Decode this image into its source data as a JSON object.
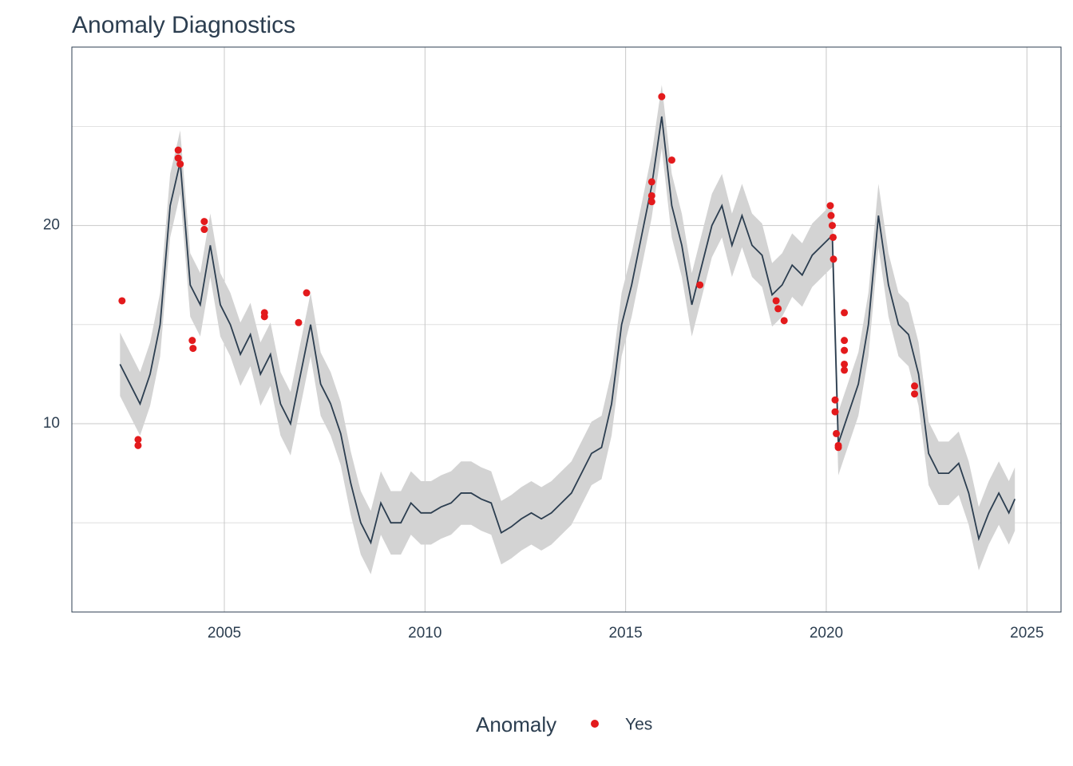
{
  "chart_data": {
    "type": "line",
    "title": "Anomaly Diagnostics",
    "x": [
      2002.4,
      2002.65,
      2002.9,
      2003.15,
      2003.4,
      2003.65,
      2003.9,
      2004.15,
      2004.4,
      2004.65,
      2004.9,
      2005.15,
      2005.4,
      2005.65,
      2005.9,
      2006.15,
      2006.4,
      2006.65,
      2006.9,
      2007.15,
      2007.4,
      2007.65,
      2007.9,
      2008.15,
      2008.4,
      2008.65,
      2008.9,
      2009.15,
      2009.4,
      2009.65,
      2009.9,
      2010.15,
      2010.4,
      2010.65,
      2010.9,
      2011.15,
      2011.4,
      2011.65,
      2011.9,
      2012.15,
      2012.4,
      2012.65,
      2012.9,
      2013.15,
      2013.4,
      2013.65,
      2013.9,
      2014.15,
      2014.4,
      2014.65,
      2014.9,
      2015.15,
      2015.4,
      2015.65,
      2015.9,
      2016.15,
      2016.4,
      2016.65,
      2016.9,
      2017.15,
      2017.4,
      2017.65,
      2017.9,
      2018.15,
      2018.4,
      2018.65,
      2018.9,
      2019.15,
      2019.4,
      2019.65,
      2019.9,
      2020.15,
      2020.3,
      2020.55,
      2020.8,
      2021.05,
      2021.3,
      2021.55,
      2021.8,
      2022.05,
      2022.3,
      2022.55,
      2022.8,
      2023.05,
      2023.3,
      2023.55,
      2023.8,
      2024.05,
      2024.3,
      2024.55,
      2024.7
    ],
    "values": [
      13,
      12,
      11,
      12.5,
      15,
      21,
      23.2,
      17,
      16,
      19,
      16,
      15,
      13.5,
      14.5,
      12.5,
      13.5,
      11,
      10,
      12.5,
      15,
      12,
      11,
      9.5,
      7,
      5,
      4,
      6,
      5,
      5,
      6,
      5.5,
      5.5,
      5.8,
      6,
      6.5,
      6.5,
      6.2,
      6,
      4.5,
      4.8,
      5.2,
      5.5,
      5.2,
      5.5,
      6,
      6.5,
      7.5,
      8.5,
      8.8,
      11,
      15,
      17,
      19.5,
      22,
      25.5,
      21,
      19,
      16,
      18,
      20,
      21,
      19,
      20.5,
      19,
      18.5,
      16.5,
      17,
      18,
      17.5,
      18.5,
      19,
      19.5,
      9,
      10.5,
      12,
      15,
      20.5,
      17,
      15,
      14.5,
      12.5,
      8.5,
      7.5,
      7.5,
      8,
      6.5,
      4.2,
      5.5,
      6.5,
      5.5,
      6.2
    ],
    "lower": [
      11.4,
      10.4,
      9.4,
      10.9,
      13.4,
      19.4,
      21.6,
      15.4,
      14.4,
      17.4,
      14.4,
      13.4,
      11.9,
      12.9,
      10.9,
      11.9,
      9.4,
      8.4,
      10.9,
      13.4,
      10.4,
      9.4,
      7.9,
      5.4,
      3.4,
      2.4,
      4.4,
      3.4,
      3.4,
      4.4,
      3.9,
      3.9,
      4.2,
      4.4,
      4.9,
      4.9,
      4.6,
      4.4,
      2.9,
      3.2,
      3.6,
      3.9,
      3.6,
      3.9,
      4.4,
      4.9,
      5.9,
      6.9,
      7.2,
      9.4,
      13.4,
      15.4,
      17.9,
      20.4,
      23.9,
      19.4,
      17.4,
      14.4,
      16.4,
      18.4,
      19.4,
      17.4,
      18.9,
      17.4,
      16.9,
      14.9,
      15.4,
      16.4,
      15.9,
      16.9,
      17.4,
      17.9,
      7.4,
      8.9,
      10.4,
      13.4,
      18.9,
      15.4,
      13.4,
      12.9,
      10.9,
      6.9,
      5.9,
      5.9,
      6.4,
      4.9,
      2.6,
      3.9,
      4.9,
      3.9,
      4.6
    ],
    "upper": [
      14.6,
      13.6,
      12.6,
      14.1,
      16.6,
      22.6,
      24.8,
      18.6,
      17.6,
      20.6,
      17.6,
      16.6,
      15.1,
      16.1,
      14.1,
      15.1,
      12.6,
      11.6,
      14.1,
      16.6,
      13.6,
      12.6,
      11.1,
      8.6,
      6.6,
      5.6,
      7.6,
      6.6,
      6.6,
      7.6,
      7.1,
      7.1,
      7.4,
      7.6,
      8.1,
      8.1,
      7.8,
      7.6,
      6.1,
      6.4,
      6.8,
      7.1,
      6.8,
      7.1,
      7.6,
      8.1,
      9.1,
      10.1,
      10.4,
      12.6,
      16.6,
      18.6,
      21.1,
      23.6,
      27.1,
      22.6,
      20.6,
      17.6,
      19.6,
      21.6,
      22.6,
      20.6,
      22.1,
      20.6,
      20.1,
      18.1,
      18.6,
      19.6,
      19.1,
      20.1,
      20.6,
      21.1,
      10.6,
      12.1,
      13.6,
      16.6,
      22.1,
      18.6,
      16.6,
      16.1,
      14.1,
      10.1,
      9.1,
      9.1,
      9.6,
      8.1,
      5.8,
      7.1,
      8.1,
      7.1,
      7.8
    ],
    "color": "#2c3e50",
    "band_color": "#d3d3d3",
    "anomalies": {
      "name": "Yes",
      "color": "#e31a1c",
      "x": [
        2002.45,
        2002.85,
        2002.85,
        2003.85,
        2003.85,
        2003.9,
        2004.2,
        2004.22,
        2004.5,
        2004.5,
        2006.0,
        2006.0,
        2006.85,
        2007.05,
        2015.65,
        2015.65,
        2015.65,
        2015.9,
        2016.15,
        2016.85,
        2018.75,
        2018.8,
        2018.95,
        2020.1,
        2020.12,
        2020.15,
        2020.17,
        2020.18,
        2020.22,
        2020.22,
        2020.25,
        2020.3,
        2020.3,
        2020.45,
        2020.45,
        2020.45,
        2020.45,
        2020.45,
        2022.2,
        2022.2
      ],
      "values": [
        16.2,
        9.2,
        8.9,
        23.8,
        23.4,
        23.1,
        14.2,
        13.8,
        20.2,
        19.8,
        15.6,
        15.4,
        15.1,
        16.6,
        22.2,
        21.5,
        21.2,
        26.5,
        23.3,
        17,
        16.2,
        15.8,
        15.2,
        21,
        20.5,
        20,
        19.4,
        18.3,
        11.2,
        10.6,
        9.5,
        8.9,
        8.8,
        15.6,
        14.2,
        13.7,
        13.0,
        12.7,
        11.9,
        11.5
      ]
    },
    "legend_title": "Anomaly",
    "legend_position": "bottom",
    "xlim": [
      2001.2,
      2025.85
    ],
    "ylim": [
      0.5,
      29
    ],
    "xticks": [
      2005,
      2010,
      2015,
      2020,
      2025
    ],
    "yticks": [
      10,
      20
    ],
    "minor_yticks": [
      5,
      15,
      25
    ],
    "grid": true
  }
}
